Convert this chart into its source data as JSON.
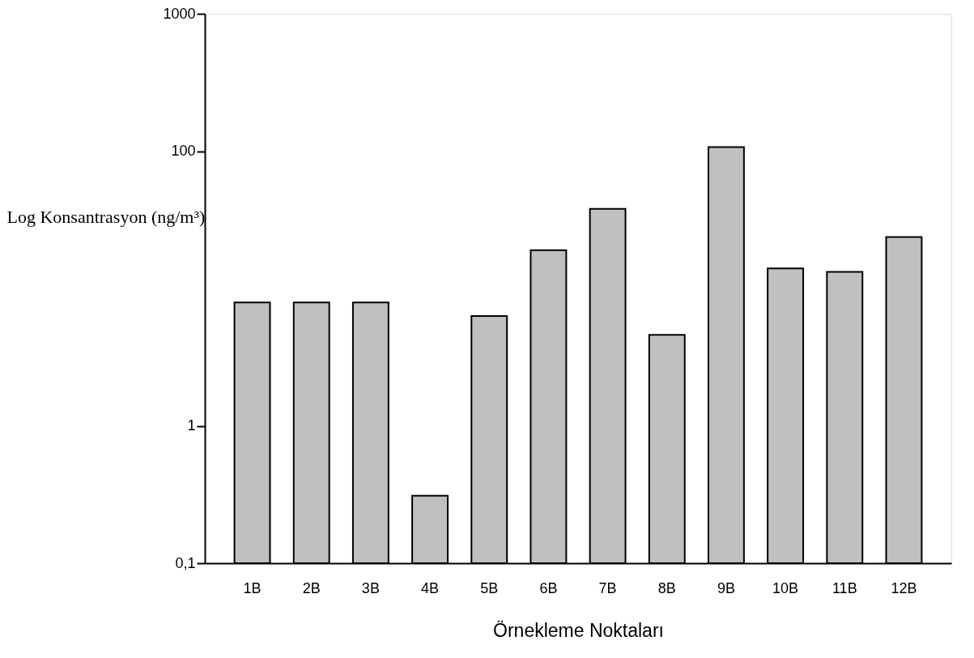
{
  "chart_data": {
    "type": "bar",
    "xlabel": "Örnekleme Noktaları",
    "ylabel": "Log Konsantrasyon (ng/m³)",
    "categories": [
      "1B",
      "2B",
      "3B",
      "4B",
      "5B",
      "6B",
      "7B",
      "8B",
      "9B",
      "10B",
      "11B",
      "12B"
    ],
    "values": [
      7.9,
      7.9,
      7.9,
      0.31,
      6.3,
      19,
      38,
      4.6,
      107,
      14,
      13.2,
      23.7
    ],
    "color": "#c0c0c0",
    "log": true,
    "ylim": [
      0.1,
      1000
    ],
    "yticks": [
      {
        "value": 0.1,
        "label": "0,1"
      },
      1,
      100,
      1000
    ],
    "grid": false
  }
}
